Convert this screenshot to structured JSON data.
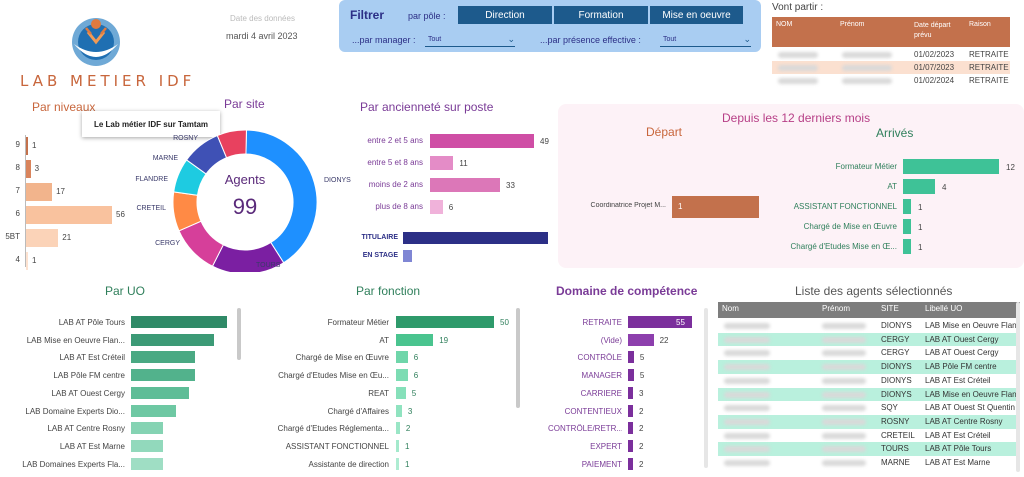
{
  "header": {
    "logo_text": "LAB METIER IDF",
    "date_label": "Date des données",
    "date_value": "mardi 4 avril 2023"
  },
  "filter": {
    "title": "Filtrer",
    "by_pole_label": "par pôle :",
    "poles": [
      "Direction",
      "Formation",
      "Mise en oeuvre"
    ],
    "by_manager_label": "...par manager :",
    "manager_value": "Tout",
    "by_presence_label": "...par présence effective :",
    "presence_value": "Tout"
  },
  "vont_partir": {
    "title": "Vont partir :",
    "columns": [
      "NOM",
      "Prénom",
      "Date départ prévu",
      "Raison"
    ],
    "rows": [
      {
        "date": "01/02/2023",
        "raison": "RETRAITE",
        "highlight": false
      },
      {
        "date": "01/07/2023",
        "raison": "RETRAITE",
        "highlight": true
      },
      {
        "date": "01/02/2024",
        "raison": "RETRAITE",
        "highlight": false
      }
    ]
  },
  "par_niveaux": {
    "title": "Par niveaux",
    "tooltip": "Le Lab métier IDF sur Tamtam",
    "items": [
      {
        "label": "9",
        "value": 1
      },
      {
        "label": "8",
        "value": 3
      },
      {
        "label": "7",
        "value": 17
      },
      {
        "label": "6",
        "value": 56
      },
      {
        "label": "5BT",
        "value": 21
      },
      {
        "label": "4",
        "value": 1
      }
    ],
    "colors": [
      "#c3714c",
      "#d9845c",
      "#f2b48c",
      "#f9c29e",
      "#fbd3b8",
      "#fde2d0"
    ]
  },
  "par_site": {
    "title": "Par site",
    "center_label": "Agents",
    "center_value": "99",
    "slices": [
      {
        "label": "DIONYS",
        "value": 37,
        "color": "#1e90ff"
      },
      {
        "label": "TOURS",
        "value": 15,
        "color": "#7b1fa2"
      },
      {
        "label": "CERGY",
        "value": 10,
        "color": "#d63f9a"
      },
      {
        "label": "CRETEIL",
        "value": 8,
        "color": "#ff8a45"
      },
      {
        "label": "FLANDRE",
        "value": 7,
        "color": "#1ecbe1"
      },
      {
        "label": "MARNE",
        "value": 8,
        "color": "#3f51b5"
      },
      {
        "label": "ROSNY",
        "value": 6,
        "color": "#e8415f"
      }
    ]
  },
  "anciennete": {
    "title": "Par ancienneté sur poste",
    "items": [
      {
        "label": "entre 2 et 5 ans",
        "value": 49,
        "color": "#cf4ea5"
      },
      {
        "label": "entre 5 et 8 ans",
        "value": 11,
        "color": "#e48cc7"
      },
      {
        "label": "moins de 2 ans",
        "value": 33,
        "color": "#dc77b8"
      },
      {
        "label": "plus de 8 ans",
        "value": 6,
        "color": "#f0b2da"
      }
    ],
    "status": [
      {
        "label": "TITULAIRE",
        "value": 93,
        "color": "#2c2f86"
      },
      {
        "label": "EN STAGE",
        "value": 6,
        "color": "#7f86d4"
      }
    ]
  },
  "depuis": {
    "title": "Depuis les 12 derniers mois",
    "depart_title": "Départ",
    "depart": [
      {
        "label": "Coordinatrice Projet M...",
        "value": 1
      }
    ],
    "arrives_title": "Arrivés",
    "arrives": [
      {
        "label": "Formateur Métier",
        "value": 12
      },
      {
        "label": "AT",
        "value": 4
      },
      {
        "label": "ASSISTANT FONCTIONNEL",
        "value": 1
      },
      {
        "label": "Chargé de Mise en Œuvre",
        "value": 1
      },
      {
        "label": "Chargé d'Etudes Mise en Œ...",
        "value": 1
      }
    ]
  },
  "par_uo": {
    "title": "Par UO",
    "items": [
      {
        "label": "LAB AT Pôle Tours",
        "value": 15,
        "color": "#2f8a67"
      },
      {
        "label": "LAB Mise en Oeuvre Flan...",
        "value": 13,
        "color": "#3c9a76"
      },
      {
        "label": "LAB AT Est Créteil",
        "value": 10,
        "color": "#4aa983"
      },
      {
        "label": "LAB Pôle FM centre",
        "value": 10,
        "color": "#52b28c"
      },
      {
        "label": "LAB AT Ouest Cergy",
        "value": 9,
        "color": "#5ebd97"
      },
      {
        "label": "LAB Domaine Experts Dio...",
        "value": 7,
        "color": "#6ec8a3"
      },
      {
        "label": "LAB AT Centre Rosny",
        "value": 5,
        "color": "#85d3b3"
      },
      {
        "label": "LAB AT Est Marne",
        "value": 5,
        "color": "#92d9bc"
      },
      {
        "label": "LAB Domaines Experts Fla...",
        "value": 5,
        "color": "#9fdec4"
      }
    ]
  },
  "par_fonction": {
    "title": "Par fonction",
    "items": [
      {
        "label": "Formateur Métier",
        "value": 50,
        "color": "#2e9a6b"
      },
      {
        "label": "AT",
        "value": 19,
        "color": "#4ac48f"
      },
      {
        "label": "Chargé de Mise en Œuvre",
        "value": 6,
        "color": "#6fd6aa"
      },
      {
        "label": "Chargé d'Etudes Mise en Œu...",
        "value": 6,
        "color": "#7cdcb3"
      },
      {
        "label": "REAT",
        "value": 5,
        "color": "#86e0ba"
      },
      {
        "label": "Chargé d'Affaires",
        "value": 3,
        "color": "#90e3c0"
      },
      {
        "label": "Chargé d'Etudes Réglementa...",
        "value": 2,
        "color": "#9ae6c6"
      },
      {
        "label": "ASSISTANT FONCTIONNEL",
        "value": 1,
        "color": "#a4e9cc"
      },
      {
        "label": "Assistante de direction",
        "value": 1,
        "color": "#aeecd2"
      }
    ]
  },
  "domaine": {
    "title": "Domaine de compétence",
    "items": [
      {
        "label": "RETRAITE",
        "value": 55,
        "color": "#7b2f9c"
      },
      {
        "label": "(Vide)",
        "value": 22,
        "color": "#8d3fad"
      },
      {
        "label": "CONTRÔLE",
        "value": 5,
        "color": "#7b2f9c"
      },
      {
        "label": "MANAGER",
        "value": 5,
        "color": "#7b2f9c"
      },
      {
        "label": "CARRIERE",
        "value": 3,
        "color": "#7b2f9c"
      },
      {
        "label": "CONTENTIEUX",
        "value": 2,
        "color": "#7b2f9c"
      },
      {
        "label": "CONTRÔLE/RETR...",
        "value": 2,
        "color": "#7b2f9c"
      },
      {
        "label": "EXPERT",
        "value": 2,
        "color": "#7b2f9c"
      },
      {
        "label": "PAIEMENT",
        "value": 2,
        "color": "#7b2f9c"
      }
    ]
  },
  "liste": {
    "title": "Liste des agents sélectionnés",
    "columns": [
      "Nom",
      "Prénom",
      "SITE",
      "Libellé UO"
    ],
    "rows": [
      {
        "site": "DIONYS",
        "uo": "LAB Mise en Oeuvre Flan",
        "hl": false
      },
      {
        "site": "CERGY",
        "uo": "LAB AT Ouest Cergy",
        "hl": true
      },
      {
        "site": "CERGY",
        "uo": "LAB AT Ouest Cergy",
        "hl": false
      },
      {
        "site": "DIONYS",
        "uo": "LAB Pôle FM centre",
        "hl": true
      },
      {
        "site": "DIONYS",
        "uo": "LAB AT Est Créteil",
        "hl": false
      },
      {
        "site": "DIONYS",
        "uo": "LAB Mise en Oeuvre Flan",
        "hl": true
      },
      {
        "site": "SQY",
        "uo": "LAB AT Ouest St Quentin",
        "hl": false
      },
      {
        "site": "ROSNY",
        "uo": "LAB AT Centre Rosny",
        "hl": true
      },
      {
        "site": "CRETEIL",
        "uo": "LAB AT Est Créteil",
        "hl": false
      },
      {
        "site": "TOURS",
        "uo": "LAB AT Pôle Tours",
        "hl": true
      },
      {
        "site": "MARNE",
        "uo": "LAB AT Est Marne",
        "hl": false
      }
    ]
  }
}
